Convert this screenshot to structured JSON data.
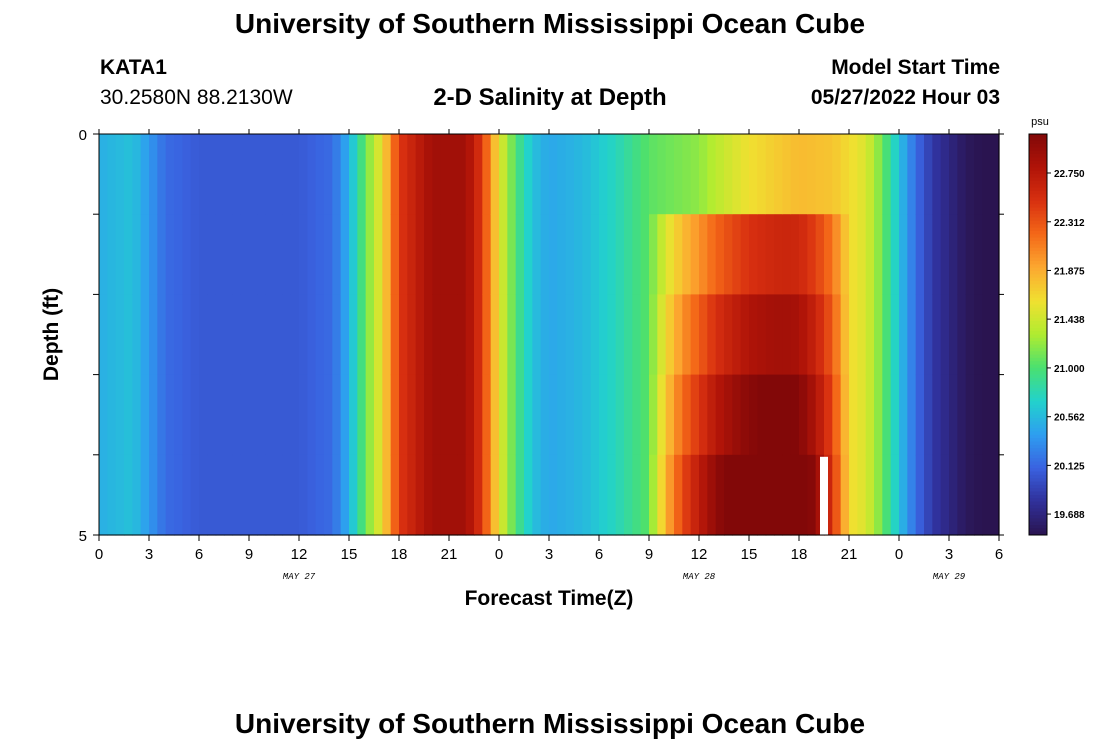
{
  "header": {
    "title": "University of Southern Mississippi Ocean Cube",
    "station_id": "KATA1",
    "coords": "30.2580N  88.2130W",
    "chart_title": "2-D Salinity at Depth",
    "model_start_label": "Model Start Time",
    "model_start_value": "05/27/2022 Hour 03"
  },
  "footer": {
    "title": "University of Southern Mississippi Ocean Cube"
  },
  "chart_data": {
    "type": "heatmap",
    "title": "2-D Salinity at Depth",
    "xlabel": "Forecast Time(Z)",
    "ylabel": "Depth (ft)",
    "x_tick_labels": [
      "0",
      "3",
      "6",
      "9",
      "12",
      "15",
      "18",
      "21",
      "0",
      "3",
      "6",
      "9",
      "12",
      "15",
      "18",
      "21",
      "0",
      "3",
      "6"
    ],
    "date_labels": [
      {
        "label": "MAY 27",
        "hour": 12
      },
      {
        "label": "MAY 28",
        "hour": 36
      },
      {
        "label": "MAY 29",
        "hour": 51
      }
    ],
    "y_tick_labels": [
      "0",
      "5"
    ],
    "ylim": [
      0,
      5
    ],
    "x_hours": [
      0,
      54
    ],
    "depth_levels": 5,
    "colorbar": {
      "unit": "psu",
      "min": 19.5,
      "max": 23.1,
      "tick_labels": [
        "22.750",
        "22.312",
        "21.875",
        "21.438",
        "21.000",
        "20.562",
        "20.125",
        "19.688"
      ],
      "colors": [
        "#2a1450",
        "#30309a",
        "#3a62e0",
        "#2e9ef0",
        "#22d2cc",
        "#4ae070",
        "#b0ec30",
        "#f0e030",
        "#fca830",
        "#f46818",
        "#d83010",
        "#b01408",
        "#820808"
      ]
    },
    "key_hours": [
      0,
      2,
      4,
      6,
      9,
      12,
      14,
      15,
      16,
      17,
      18,
      20,
      22,
      23,
      24,
      25,
      26,
      27,
      29,
      31,
      33,
      35,
      36,
      37,
      39,
      42,
      44,
      46,
      47,
      48,
      49,
      50,
      51,
      52,
      54
    ],
    "surface_psu": [
      20.5,
      20.6,
      20.15,
      20.05,
      20.05,
      20.05,
      20.15,
      20.5,
      21.1,
      21.6,
      22.45,
      22.9,
      22.9,
      22.45,
      21.55,
      21.0,
      20.6,
      20.45,
      20.55,
      20.75,
      21.05,
      21.15,
      21.2,
      21.35,
      21.6,
      21.8,
      21.75,
      21.5,
      21.1,
      20.6,
      20.15,
      19.85,
      19.7,
      19.55,
      19.45
    ],
    "depth_offsets": [
      0.0,
      0.9,
      1.2,
      1.45,
      1.7
    ],
    "depth_offset_window_hours": [
      33,
      45
    ],
    "missing_cells": [
      {
        "hour": 43.5,
        "level": 4
      }
    ]
  }
}
